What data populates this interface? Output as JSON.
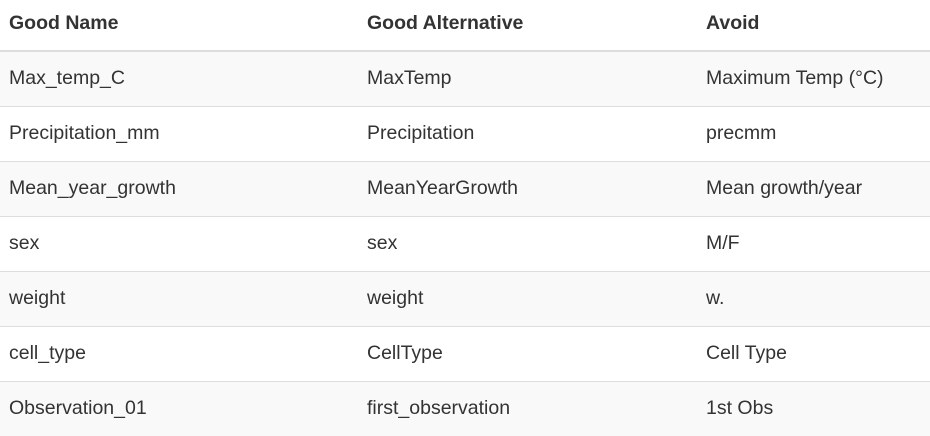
{
  "table": {
    "headers": [
      "Good Name",
      "Good Alternative",
      "Avoid"
    ],
    "rows": [
      [
        "Max_temp_C",
        "MaxTemp",
        "Maximum Temp (°C)"
      ],
      [
        "Precipitation_mm",
        "Precipitation",
        "precmm"
      ],
      [
        "Mean_year_growth",
        "MeanYearGrowth",
        "Mean growth/year"
      ],
      [
        "sex",
        "sex",
        "M/F"
      ],
      [
        "weight",
        "weight",
        "w."
      ],
      [
        "cell_type",
        "CellType",
        "Cell Type"
      ],
      [
        "Observation_01",
        "first_observation",
        "1st Obs"
      ]
    ]
  }
}
